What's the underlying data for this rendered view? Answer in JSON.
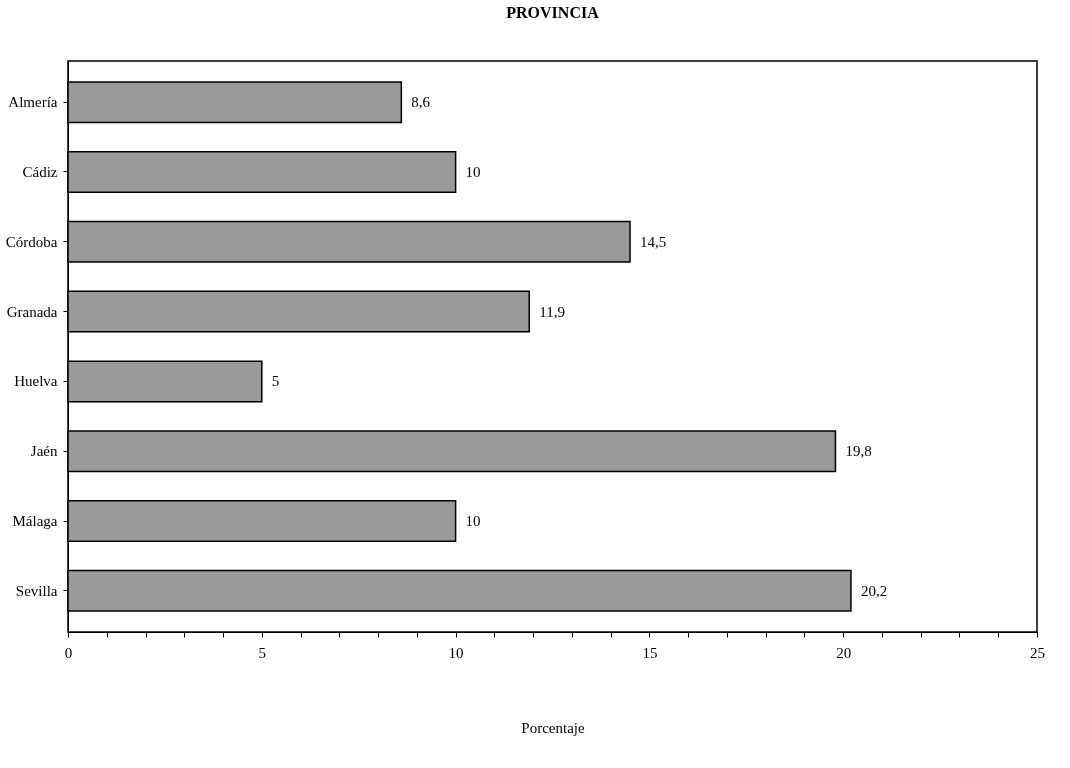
{
  "chart_data": {
    "type": "bar",
    "orientation": "horizontal",
    "title": "PROVINCIA",
    "xlabel": "Porcentaje",
    "categories": [
      "Almería",
      "Cádiz",
      "Córdoba",
      "Granada",
      "Huelva",
      "Jaén",
      "Málaga",
      "Sevilla"
    ],
    "values": [
      8.6,
      10,
      14.5,
      11.9,
      5,
      19.8,
      10,
      20.2
    ],
    "value_labels": [
      "8,6",
      "10",
      "14,5",
      "11,9",
      "5",
      "19,8",
      "10",
      "20,2"
    ],
    "color": "#9a9a9a",
    "xlim": [
      0,
      25
    ],
    "xticks": [
      0,
      {
        "value": 1,
        "label": null
      },
      {
        "value": 2,
        "label": null
      },
      {
        "value": 3,
        "label": null
      },
      {
        "value": 4,
        "label": null
      },
      5,
      {
        "value": 6,
        "label": null
      },
      {
        "value": 7,
        "label": null
      },
      {
        "value": 8,
        "label": null
      },
      {
        "value": 9,
        "label": null
      },
      10,
      {
        "value": 11,
        "label": null
      },
      {
        "value": 12,
        "label": null
      },
      {
        "value": 13,
        "label": null
      },
      {
        "value": 14,
        "label": null
      },
      15,
      {
        "value": 16,
        "label": null
      },
      {
        "value": 17,
        "label": null
      },
      {
        "value": 18,
        "label": null
      },
      {
        "value": 19,
        "label": null
      },
      20,
      {
        "value": 21,
        "label": null
      },
      {
        "value": 22,
        "label": null
      },
      {
        "value": 23,
        "label": null
      },
      {
        "value": 24,
        "label": null
      },
      25
    ],
    "grid": false
  }
}
